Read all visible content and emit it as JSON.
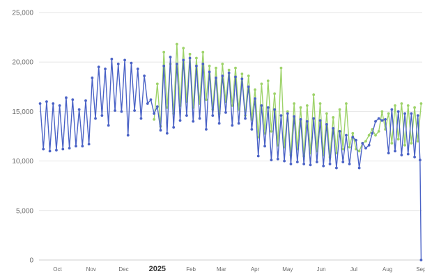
{
  "colors": {
    "series_a": "#4a62c6",
    "series_b": "#9ed36a",
    "grid": "#e6e6e6",
    "text": "#6b6b6b"
  },
  "chart_data": {
    "type": "line",
    "title": "",
    "xlabel": "",
    "ylabel": "",
    "ylim": [
      0,
      25000
    ],
    "x_range": [
      "2024-09-14",
      "2025-09-02"
    ],
    "grid": true,
    "legend": "none",
    "y_ticks": [
      "0",
      "5,000",
      "10,000",
      "15,000",
      "20,000",
      "25,000"
    ],
    "x_ticks": [
      {
        "date": "2024-10-01",
        "label": "Oct",
        "major": false
      },
      {
        "date": "2024-11-01",
        "label": "Nov",
        "major": false
      },
      {
        "date": "2024-12-01",
        "label": "Dec",
        "major": false
      },
      {
        "date": "2025-01-01",
        "label": "2025",
        "major": true
      },
      {
        "date": "2025-02-01",
        "label": "Feb",
        "major": false
      },
      {
        "date": "2025-03-01",
        "label": "Mar",
        "major": false
      },
      {
        "date": "2025-04-01",
        "label": "Apr",
        "major": false
      },
      {
        "date": "2025-05-01",
        "label": "May",
        "major": false
      },
      {
        "date": "2025-06-01",
        "label": "Jun",
        "major": false
      },
      {
        "date": "2025-07-01",
        "label": "Jul",
        "major": false
      },
      {
        "date": "2025-08-01",
        "label": "Aug",
        "major": false
      },
      {
        "date": "2025-09-01",
        "label": "Sep",
        "major": false
      }
    ],
    "series": [
      {
        "color": "#4a62c6",
        "points": [
          [
            "2024-09-15",
            15800
          ],
          [
            "2024-09-18",
            11200
          ],
          [
            "2024-09-21",
            16000
          ],
          [
            "2024-09-24",
            11000
          ],
          [
            "2024-09-27",
            15800
          ],
          [
            "2024-09-30",
            11100
          ],
          [
            "2024-10-03",
            15600
          ],
          [
            "2024-10-06",
            11200
          ],
          [
            "2024-10-09",
            16400
          ],
          [
            "2024-10-12",
            11300
          ],
          [
            "2024-10-15",
            16200
          ],
          [
            "2024-10-18",
            11500
          ],
          [
            "2024-10-21",
            15200
          ],
          [
            "2024-10-24",
            11500
          ],
          [
            "2024-10-27",
            16100
          ],
          [
            "2024-10-30",
            11700
          ],
          [
            "2024-11-02",
            18400
          ],
          [
            "2024-11-05",
            14300
          ],
          [
            "2024-11-08",
            19500
          ],
          [
            "2024-11-11",
            14600
          ],
          [
            "2024-11-14",
            19300
          ],
          [
            "2024-11-17",
            13600
          ],
          [
            "2024-11-20",
            20300
          ],
          [
            "2024-11-23",
            15100
          ],
          [
            "2024-11-26",
            19800
          ],
          [
            "2024-11-29",
            15000
          ],
          [
            "2024-12-02",
            20200
          ],
          [
            "2024-12-05",
            12600
          ],
          [
            "2024-12-08",
            19900
          ],
          [
            "2024-12-11",
            15100
          ],
          [
            "2024-12-14",
            19300
          ],
          [
            "2024-12-17",
            14300
          ],
          [
            "2024-12-20",
            18600
          ],
          [
            "2024-12-23",
            15800
          ],
          [
            "2024-12-26",
            16200
          ],
          [
            "2024-12-29",
            14800
          ],
          [
            "2025-01-01",
            15500
          ],
          [
            "2025-01-04",
            13100
          ],
          [
            "2025-01-07",
            19600
          ],
          [
            "2025-01-10",
            12800
          ],
          [
            "2025-01-13",
            20500
          ],
          [
            "2025-01-16",
            13400
          ],
          [
            "2025-01-19",
            19800
          ],
          [
            "2025-01-22",
            14100
          ],
          [
            "2025-01-25",
            20200
          ],
          [
            "2025-01-28",
            14600
          ],
          [
            "2025-01-31",
            20400
          ],
          [
            "2025-02-03",
            14000
          ],
          [
            "2025-02-06",
            19600
          ],
          [
            "2025-02-09",
            14300
          ],
          [
            "2025-02-12",
            19800
          ],
          [
            "2025-02-15",
            13200
          ],
          [
            "2025-02-18",
            19000
          ],
          [
            "2025-02-21",
            14600
          ],
          [
            "2025-02-24",
            18400
          ],
          [
            "2025-02-27",
            13800
          ],
          [
            "2025-03-02",
            18600
          ],
          [
            "2025-03-05",
            14900
          ],
          [
            "2025-03-08",
            18900
          ],
          [
            "2025-03-11",
            13600
          ],
          [
            "2025-03-14",
            18500
          ],
          [
            "2025-03-17",
            13800
          ],
          [
            "2025-03-20",
            18300
          ],
          [
            "2025-03-23",
            14300
          ],
          [
            "2025-03-26",
            17500
          ],
          [
            "2025-03-29",
            13200
          ],
          [
            "2025-04-01",
            16300
          ],
          [
            "2025-04-04",
            10500
          ],
          [
            "2025-04-07",
            15600
          ],
          [
            "2025-04-10",
            11500
          ],
          [
            "2025-04-13",
            15400
          ],
          [
            "2025-04-16",
            10100
          ],
          [
            "2025-04-19",
            15200
          ],
          [
            "2025-04-22",
            10200
          ],
          [
            "2025-04-25",
            14600
          ],
          [
            "2025-04-28",
            10000
          ],
          [
            "2025-05-01",
            14800
          ],
          [
            "2025-05-04",
            9700
          ],
          [
            "2025-05-07",
            14500
          ],
          [
            "2025-05-10",
            9900
          ],
          [
            "2025-05-13",
            14200
          ],
          [
            "2025-05-16",
            9700
          ],
          [
            "2025-05-19",
            14000
          ],
          [
            "2025-05-22",
            9600
          ],
          [
            "2025-05-25",
            14300
          ],
          [
            "2025-05-28",
            9900
          ],
          [
            "2025-05-31",
            14100
          ],
          [
            "2025-06-03",
            9500
          ],
          [
            "2025-06-06",
            13700
          ],
          [
            "2025-06-09",
            9700
          ],
          [
            "2025-06-12",
            13300
          ],
          [
            "2025-06-15",
            9300
          ],
          [
            "2025-06-18",
            13000
          ],
          [
            "2025-06-21",
            9900
          ],
          [
            "2025-06-24",
            12600
          ],
          [
            "2025-06-27",
            9700
          ],
          [
            "2025-06-30",
            12400
          ],
          [
            "2025-07-03",
            12100
          ],
          [
            "2025-07-06",
            9300
          ],
          [
            "2025-07-09",
            11800
          ],
          [
            "2025-07-12",
            11300
          ],
          [
            "2025-07-15",
            11600
          ],
          [
            "2025-07-18",
            12800
          ],
          [
            "2025-07-21",
            14000
          ],
          [
            "2025-07-24",
            14300
          ],
          [
            "2025-07-27",
            14100
          ],
          [
            "2025-07-30",
            14200
          ],
          [
            "2025-08-02",
            10800
          ],
          [
            "2025-08-05",
            15200
          ],
          [
            "2025-08-08",
            11000
          ],
          [
            "2025-08-11",
            15000
          ],
          [
            "2025-08-14",
            10600
          ],
          [
            "2025-08-17",
            14800
          ],
          [
            "2025-08-20",
            10700
          ],
          [
            "2025-08-23",
            14800
          ],
          [
            "2025-08-26",
            10400
          ],
          [
            "2025-08-29",
            14600
          ],
          [
            "2025-08-31",
            10100
          ],
          [
            "2025-09-01",
            0
          ]
        ]
      },
      {
        "color": "#9ed36a",
        "points": [
          [
            "2024-12-29",
            14200
          ],
          [
            "2025-01-01",
            17800
          ],
          [
            "2025-01-04",
            13500
          ],
          [
            "2025-01-07",
            21000
          ],
          [
            "2025-01-10",
            15400
          ],
          [
            "2025-01-13",
            19800
          ],
          [
            "2025-01-16",
            14800
          ],
          [
            "2025-01-19",
            21800
          ],
          [
            "2025-01-22",
            15600
          ],
          [
            "2025-01-25",
            21400
          ],
          [
            "2025-01-28",
            16000
          ],
          [
            "2025-01-31",
            20800
          ],
          [
            "2025-02-03",
            15400
          ],
          [
            "2025-02-06",
            20400
          ],
          [
            "2025-02-09",
            15800
          ],
          [
            "2025-02-12",
            21000
          ],
          [
            "2025-02-15",
            16200
          ],
          [
            "2025-02-18",
            19600
          ],
          [
            "2025-02-21",
            15200
          ],
          [
            "2025-02-24",
            19400
          ],
          [
            "2025-02-27",
            14800
          ],
          [
            "2025-03-02",
            19800
          ],
          [
            "2025-03-05",
            16000
          ],
          [
            "2025-03-08",
            19200
          ],
          [
            "2025-03-11",
            15600
          ],
          [
            "2025-03-14",
            19400
          ],
          [
            "2025-03-17",
            15200
          ],
          [
            "2025-03-20",
            18800
          ],
          [
            "2025-03-23",
            14600
          ],
          [
            "2025-03-26",
            18600
          ],
          [
            "2025-03-29",
            14200
          ],
          [
            "2025-04-01",
            17200
          ],
          [
            "2025-04-04",
            12400
          ],
          [
            "2025-04-07",
            17800
          ],
          [
            "2025-04-10",
            12800
          ],
          [
            "2025-04-13",
            18100
          ],
          [
            "2025-04-16",
            13000
          ],
          [
            "2025-04-19",
            16800
          ],
          [
            "2025-04-22",
            11600
          ],
          [
            "2025-04-25",
            19400
          ],
          [
            "2025-04-28",
            11400
          ],
          [
            "2025-05-01",
            15000
          ],
          [
            "2025-05-04",
            10600
          ],
          [
            "2025-05-07",
            15800
          ],
          [
            "2025-05-10",
            11200
          ],
          [
            "2025-05-13",
            15400
          ],
          [
            "2025-05-16",
            10500
          ],
          [
            "2025-05-19",
            15600
          ],
          [
            "2025-05-22",
            10800
          ],
          [
            "2025-05-25",
            16700
          ],
          [
            "2025-05-28",
            11000
          ],
          [
            "2025-05-31",
            15800
          ],
          [
            "2025-06-03",
            10600
          ],
          [
            "2025-06-06",
            14800
          ],
          [
            "2025-06-09",
            10400
          ],
          [
            "2025-06-12",
            14400
          ],
          [
            "2025-06-15",
            10800
          ],
          [
            "2025-06-18",
            15200
          ],
          [
            "2025-06-21",
            11200
          ],
          [
            "2025-06-24",
            15800
          ],
          [
            "2025-06-27",
            11400
          ],
          [
            "2025-06-30",
            12800
          ],
          [
            "2025-07-03",
            11200
          ],
          [
            "2025-07-06",
            11000
          ],
          [
            "2025-07-09",
            11800
          ],
          [
            "2025-07-12",
            12000
          ],
          [
            "2025-07-15",
            12600
          ],
          [
            "2025-07-18",
            13200
          ],
          [
            "2025-07-21",
            12600
          ],
          [
            "2025-07-24",
            13000
          ],
          [
            "2025-07-27",
            15000
          ],
          [
            "2025-07-30",
            13200
          ],
          [
            "2025-08-02",
            14800
          ],
          [
            "2025-08-05",
            11800
          ],
          [
            "2025-08-08",
            15600
          ],
          [
            "2025-08-11",
            12200
          ],
          [
            "2025-08-14",
            15800
          ],
          [
            "2025-08-17",
            11600
          ],
          [
            "2025-08-20",
            15600
          ],
          [
            "2025-08-23",
            11800
          ],
          [
            "2025-08-26",
            15400
          ],
          [
            "2025-08-29",
            12000
          ],
          [
            "2025-09-01",
            15800
          ]
        ]
      }
    ]
  }
}
